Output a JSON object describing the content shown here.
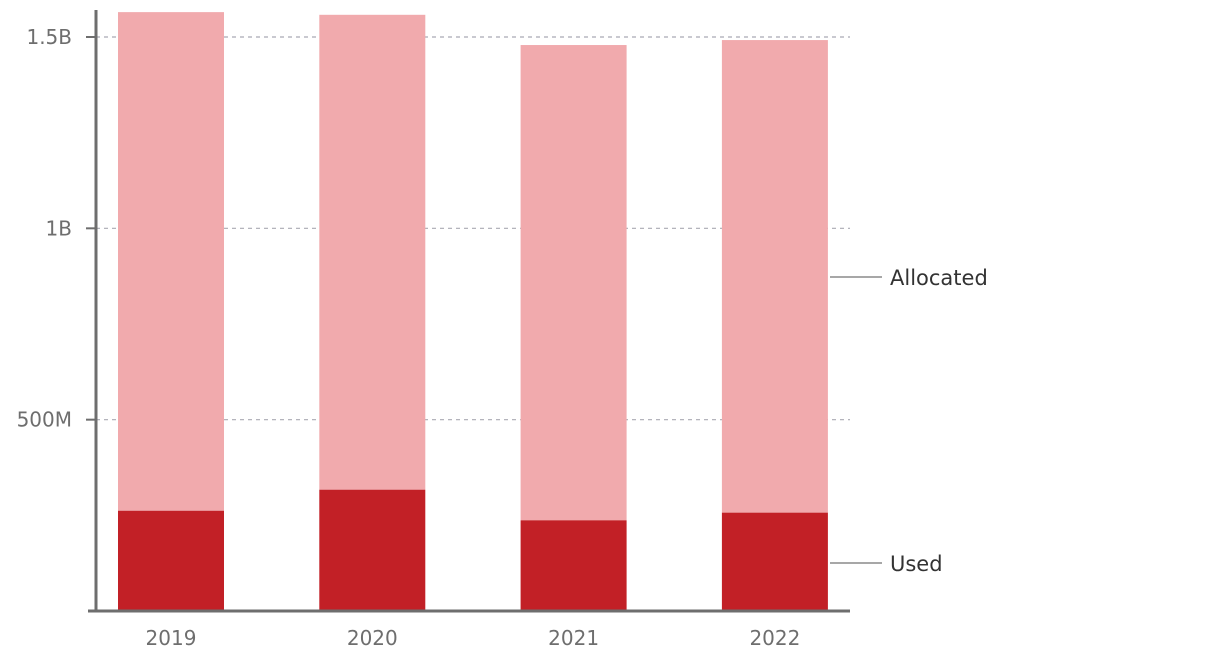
{
  "chart_data": {
    "type": "bar",
    "stacked": true,
    "categories": [
      "2019",
      "2020",
      "2021",
      "2022"
    ],
    "series": [
      {
        "name": "Used",
        "values": [
          262000000,
          317000000,
          237000000,
          257000000
        ],
        "color": "#c22026"
      },
      {
        "name": "Allocated",
        "values": [
          1303000000,
          1241000000,
          1242000000,
          1235000000
        ],
        "color": "#f1aaad"
      }
    ],
    "yticks": [
      {
        "value": 500000000,
        "label": "500M"
      },
      {
        "value": 1000000000,
        "label": "1B"
      },
      {
        "value": 1500000000,
        "label": "1.5B"
      }
    ],
    "ylim": [
      0,
      1570000000
    ],
    "grid": true,
    "legend": "right, direct labels",
    "title": "",
    "xlabel": "",
    "ylabel": ""
  }
}
